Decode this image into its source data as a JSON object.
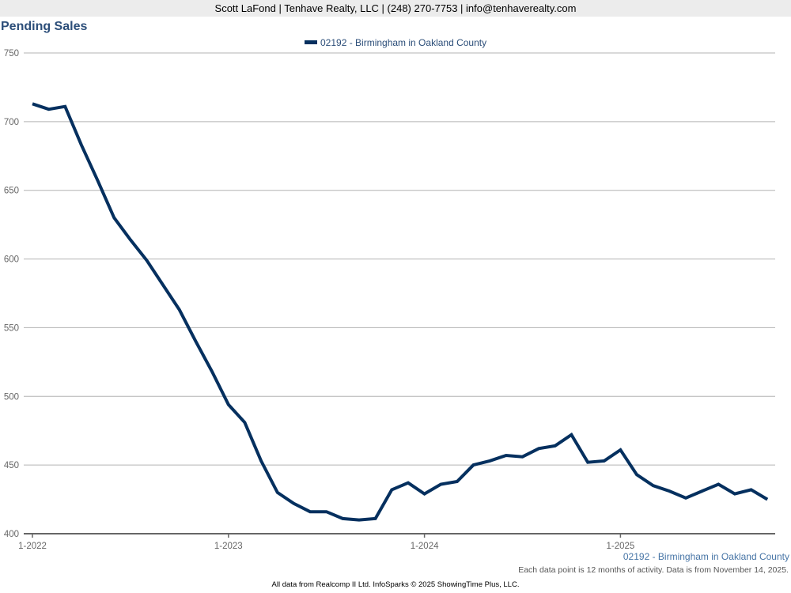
{
  "header": {
    "contact": "Scott LaFond | Tenhave Realty, LLC | (248) 270-7753 | info@tenhaverealty.com"
  },
  "footer": {
    "series_name": "02192 - Birmingham in Oakland County",
    "note": "Each data point is 12 months of activity. Data is from November 14, 2025.",
    "credits": "All data from Realcomp II Ltd. InfoSparks © 2025 ShowingTime Plus, LLC."
  },
  "colors": {
    "series": "#05305f",
    "title": "#2c4e79",
    "grid": "#b3b3b3",
    "axis": "#666666"
  },
  "chart_data": {
    "type": "line",
    "title": "Pending Sales",
    "xlabel": "",
    "ylabel": "",
    "ylim": [
      400,
      750
    ],
    "yticks": [
      "750",
      "700",
      "650",
      "600",
      "550",
      "500",
      "450",
      "400"
    ],
    "ytick_values": [
      750,
      700,
      650,
      600,
      550,
      500,
      450,
      400
    ],
    "xticks": [
      "1-2022",
      "1-2023",
      "1-2024",
      "1-2025"
    ],
    "xtick_index": [
      0,
      12,
      24,
      36
    ],
    "grid": true,
    "legend": "top-center",
    "x": [
      "1-2022",
      "2-2022",
      "3-2022",
      "4-2022",
      "5-2022",
      "6-2022",
      "7-2022",
      "8-2022",
      "9-2022",
      "10-2022",
      "11-2022",
      "12-2022",
      "1-2023",
      "2-2023",
      "3-2023",
      "4-2023",
      "5-2023",
      "6-2023",
      "7-2023",
      "8-2023",
      "9-2023",
      "10-2023",
      "11-2023",
      "12-2023",
      "1-2024",
      "2-2024",
      "3-2024",
      "4-2024",
      "5-2024",
      "6-2024",
      "7-2024",
      "8-2024",
      "9-2024",
      "10-2024",
      "11-2024",
      "12-2024",
      "1-2025",
      "2-2025",
      "3-2025",
      "4-2025",
      "5-2025",
      "6-2025",
      "7-2025",
      "8-2025",
      "9-2025",
      "10-2025"
    ],
    "series": [
      {
        "name": "02192 - Birmingham in Oakland County",
        "values": [
          713,
          709,
          711,
          683,
          657,
          630,
          614,
          599,
          581,
          563,
          540,
          518,
          494,
          481,
          453,
          430,
          422,
          416,
          416,
          411,
          410,
          411,
          432,
          437,
          429,
          436,
          438,
          450,
          453,
          457,
          456,
          462,
          464,
          472,
          452,
          453,
          461,
          443,
          435,
          431,
          426,
          431,
          436,
          429,
          432,
          425
        ]
      }
    ]
  }
}
